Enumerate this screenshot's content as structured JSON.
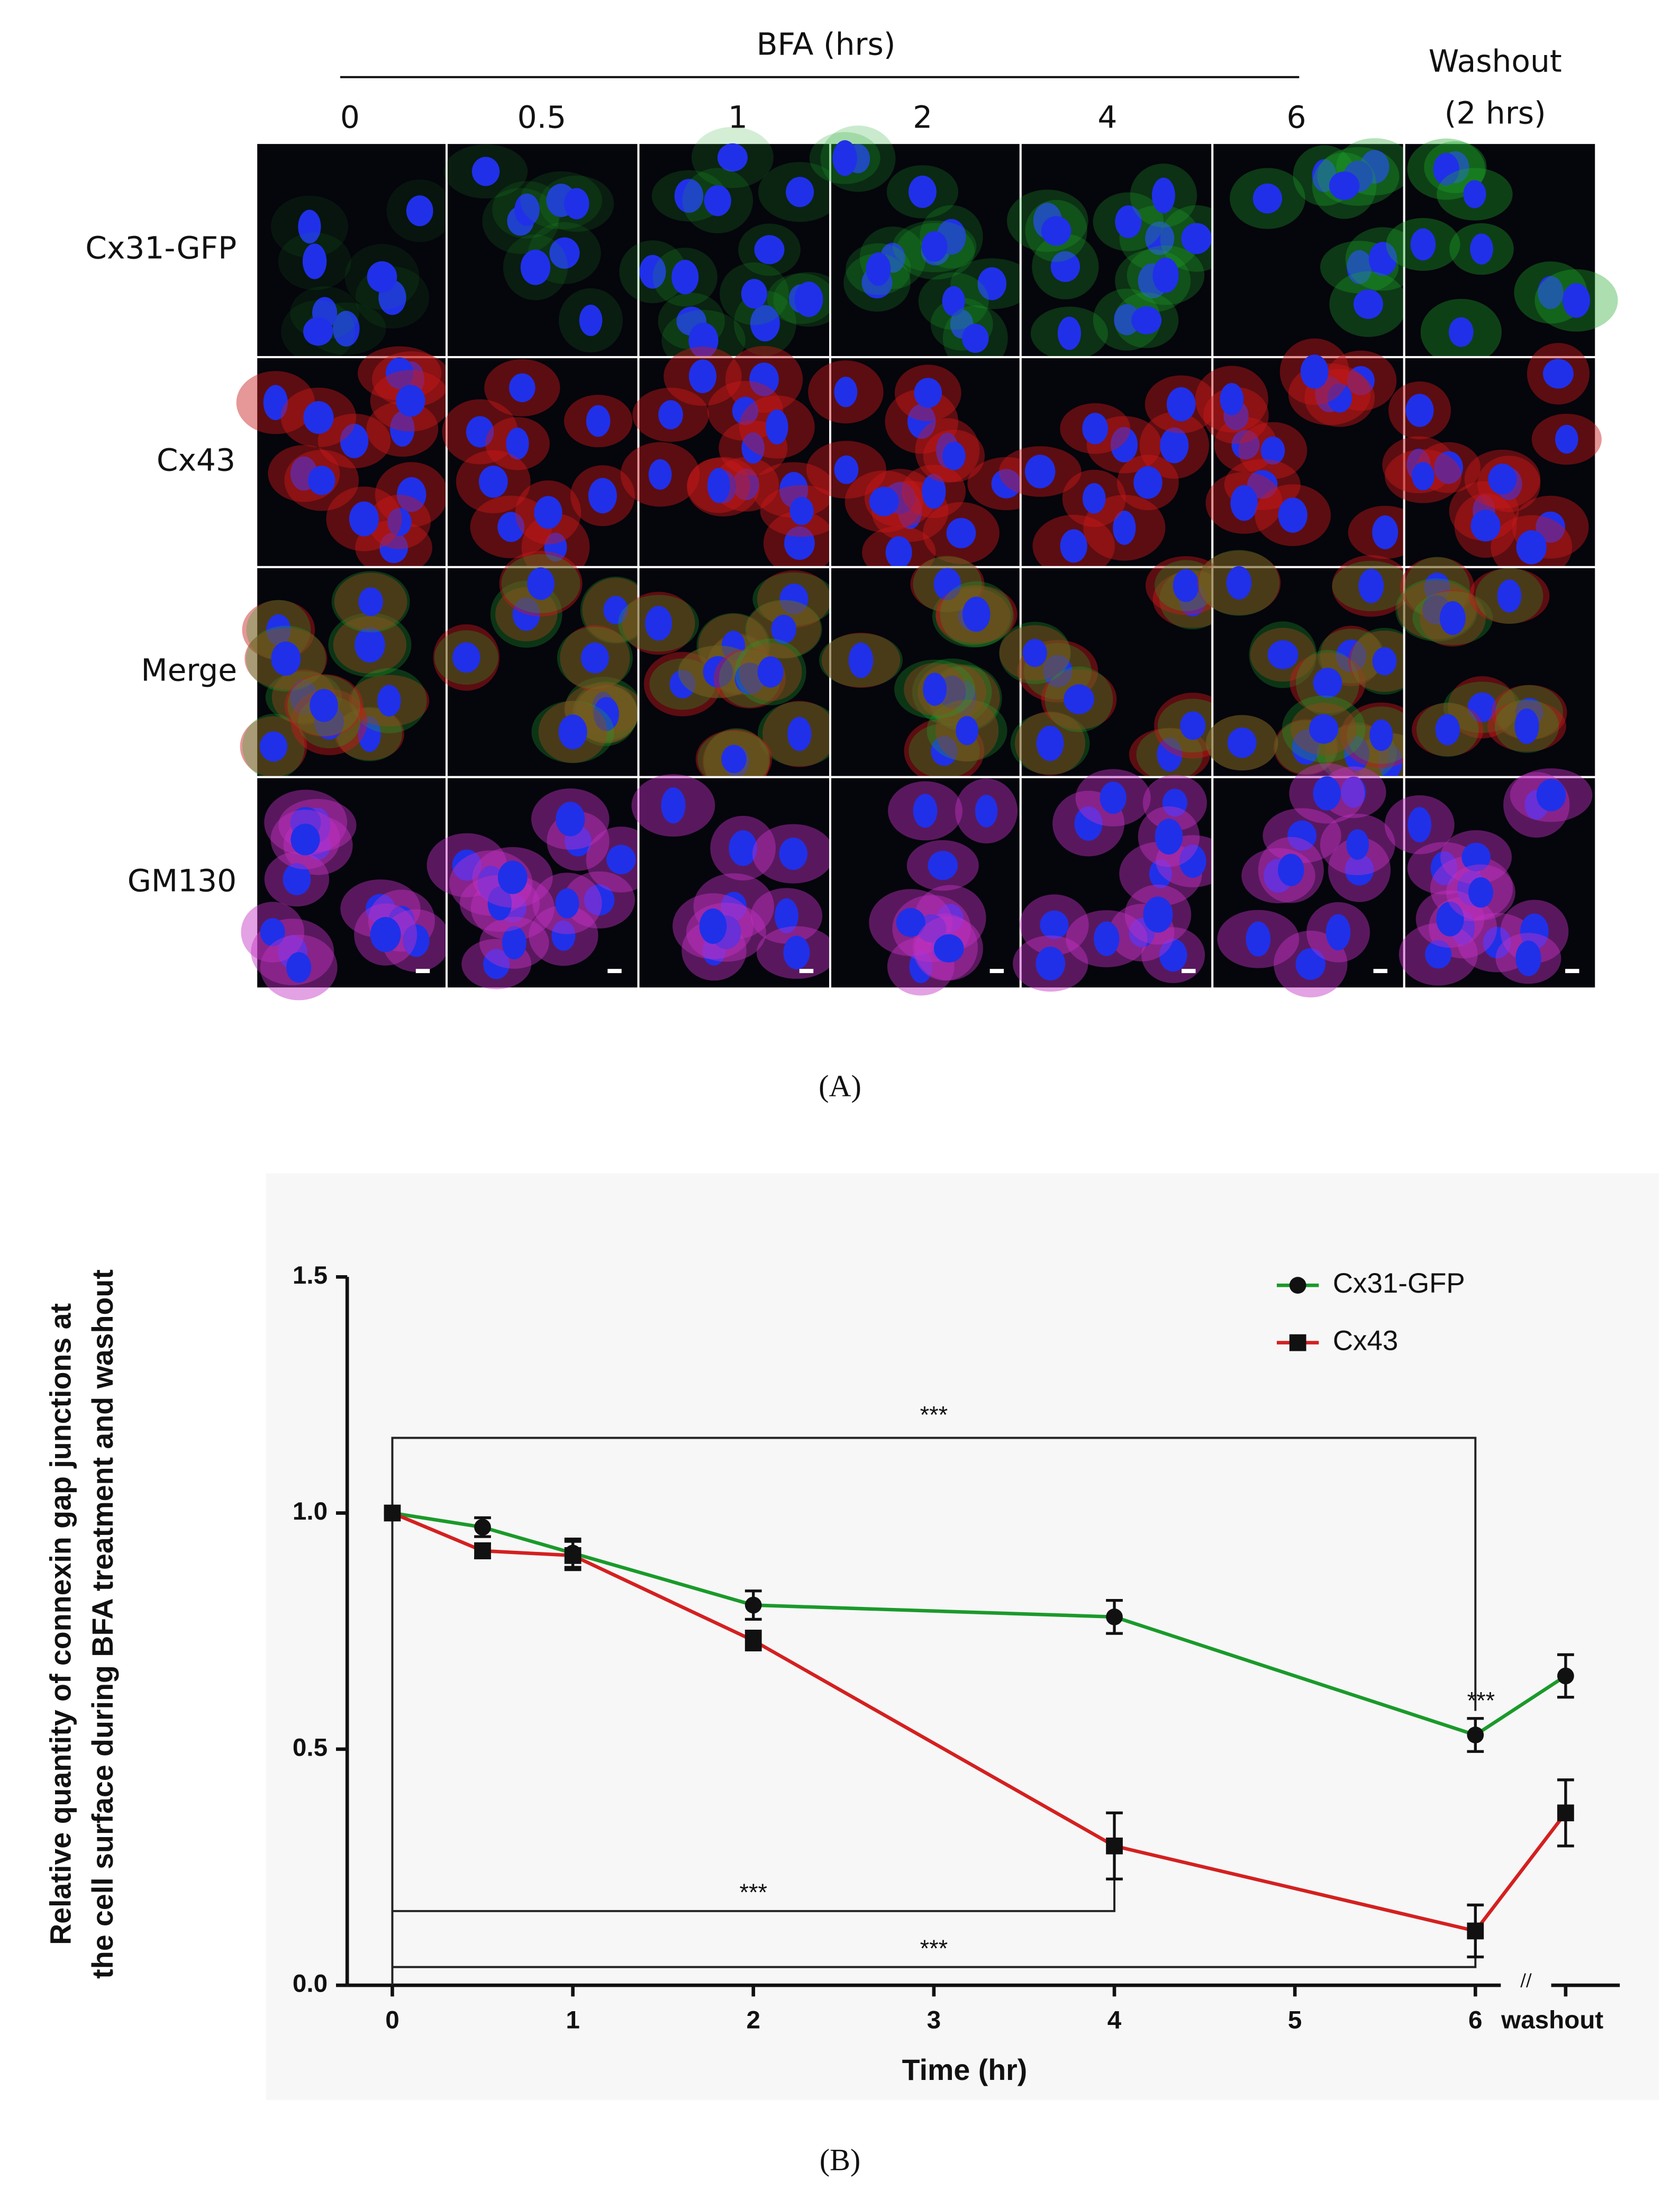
{
  "panel_a": {
    "column_header": "BFA (hrs)",
    "columns": [
      "0",
      "0.5",
      "1",
      "2",
      "4",
      "6"
    ],
    "washout_label": [
      "Washout",
      "(2 hrs)"
    ],
    "rows": [
      "Cx31-GFP",
      "Cx43",
      "Merge",
      "GM130"
    ],
    "caption": "(A)"
  },
  "chart_data": {
    "type": "line",
    "caption": "(B)",
    "xlabel": "Time (hr)",
    "ylabel": [
      "Relative quantity of connexin gap junctions at",
      "the cell surface during BFA treatment and washout"
    ],
    "xlim": [
      -0.25,
      6.8
    ],
    "ylim": [
      0,
      1.5
    ],
    "xticks": [
      0,
      1,
      2,
      3,
      4,
      5,
      6,
      {
        "value": 6.5,
        "label": "washout"
      }
    ],
    "yticks": [
      {
        "value": 0,
        "label": "0.0"
      },
      0.5,
      {
        "value": 1,
        "label": "1.0"
      },
      1.5
    ],
    "series": [
      {
        "name": "Cx31-GFP",
        "color": "#1a9a2a",
        "marker": "circle",
        "x": [
          0,
          0.5,
          1,
          2,
          4,
          6,
          6.5
        ],
        "values": [
          1.0,
          0.97,
          0.915,
          0.805,
          0.78,
          0.53,
          0.655
        ],
        "errors": [
          0,
          0.02,
          0.03,
          0.03,
          0.035,
          0.035,
          0.045
        ]
      },
      {
        "name": "Cx43",
        "color": "#d42020",
        "marker": "square",
        "x": [
          0,
          0.5,
          1,
          2,
          4,
          6,
          6.5
        ],
        "values": [
          1.0,
          0.92,
          0.91,
          0.73,
          0.295,
          0.115,
          0.365
        ],
        "errors": [
          0,
          0.015,
          0.03,
          0.02,
          0.07,
          0.055,
          0.07
        ]
      }
    ],
    "annotations": [
      "***",
      "***",
      "***",
      "***"
    ],
    "legend": "upper right"
  }
}
